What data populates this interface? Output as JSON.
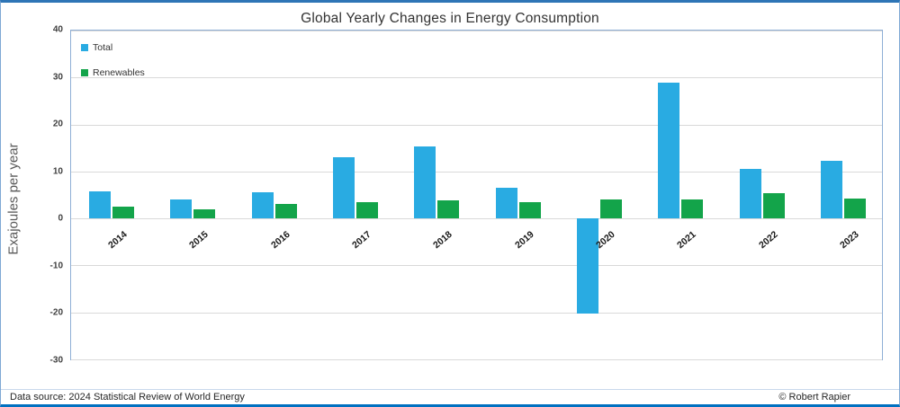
{
  "chart_data": {
    "type": "bar",
    "title": "Global Yearly Changes in Energy Consumption",
    "xlabel": "",
    "ylabel": "Exajoules per year",
    "ylim": [
      -30,
      40
    ],
    "yticks": [
      40,
      30,
      20,
      10,
      0,
      -10,
      -20,
      -30
    ],
    "grid": true,
    "legend_position": "inside-top-left",
    "categories": [
      "2014",
      "2015",
      "2016",
      "2017",
      "2018",
      "2019",
      "2020",
      "2021",
      "2022",
      "2023"
    ],
    "series": [
      {
        "name": "Total",
        "color": "#29ABE2",
        "values": [
          5.8,
          4.1,
          5.6,
          13.0,
          15.3,
          6.6,
          -20.3,
          29.0,
          10.6,
          12.2
        ]
      },
      {
        "name": "Renewables",
        "color": "#13A44A",
        "values": [
          2.5,
          1.9,
          3.0,
          3.4,
          3.9,
          3.4,
          4.1,
          4.1,
          5.4,
          4.3
        ]
      }
    ]
  },
  "footer": {
    "source": "Data source: 2024 Statistical Review of World Energy",
    "credit": "© Robert Rapier"
  },
  "colors": {
    "total": "#29ABE2",
    "renewables": "#13A44A",
    "gridline": "#D9D9D9",
    "plot_border": "#8FAFD6",
    "frame_top": "#2E75B6",
    "frame_bottom": "#0070C0"
  }
}
